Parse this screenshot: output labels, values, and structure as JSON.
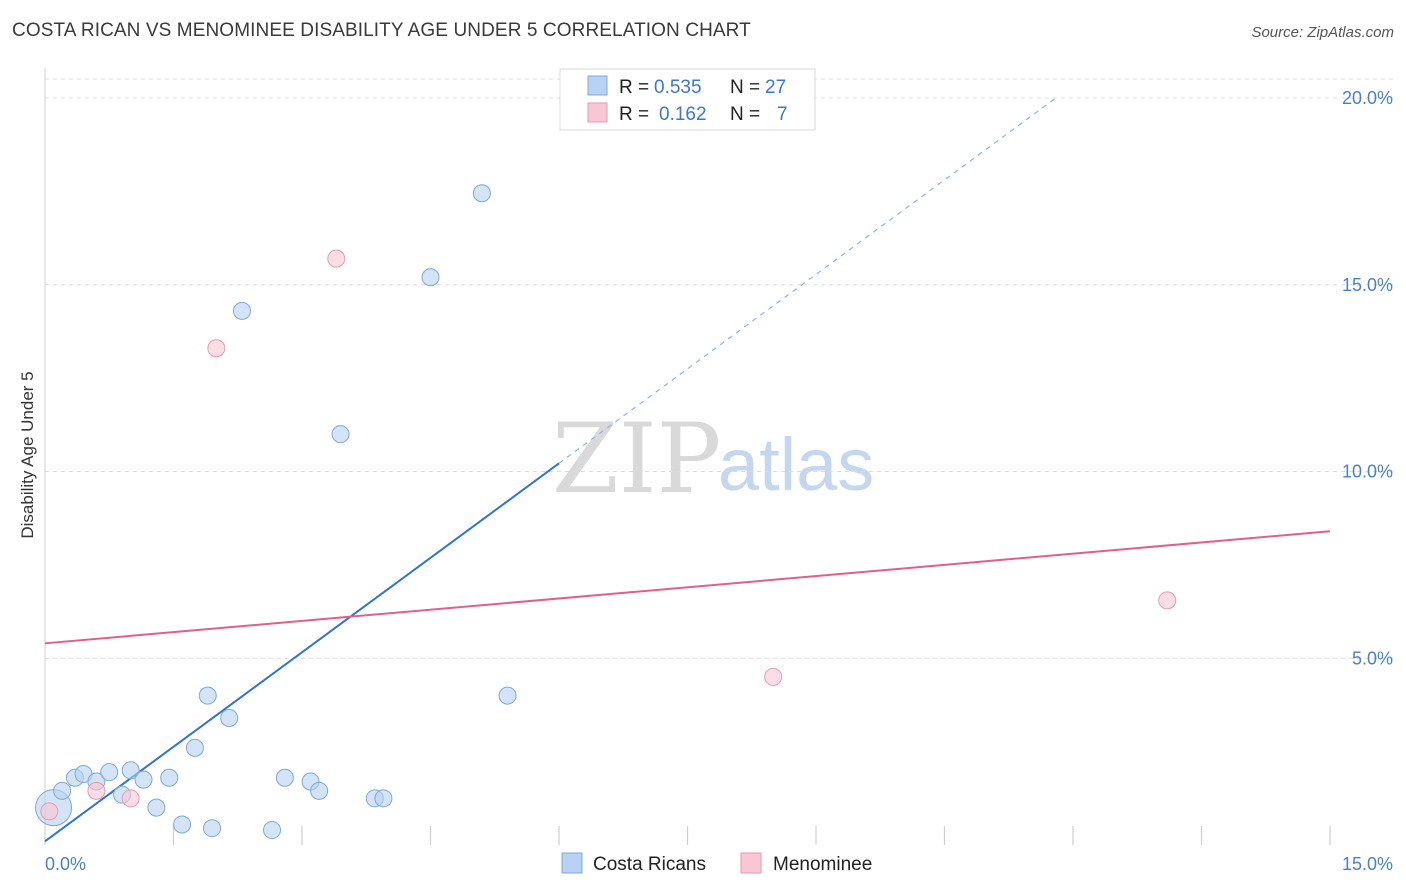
{
  "header": {
    "title": "COSTA RICAN VS MENOMINEE DISABILITY AGE UNDER 5 CORRELATION CHART",
    "source": "Source: ZipAtlas.com"
  },
  "watermark": {
    "zip": "ZIP",
    "atlas": "atlas"
  },
  "colors": {
    "blue_fill": "#b8d2f4",
    "blue_stroke": "#7fa8dc",
    "blue_line": "#2f74d0",
    "pink_fill": "#f8c6d4",
    "pink_stroke": "#e89ab0",
    "pink_line": "#e0608a",
    "grid": "#dcdcdc",
    "axis_label": "#4a7fd0"
  },
  "chart_data": {
    "type": "scatter",
    "title": "COSTA RICAN VS MENOMINEE DISABILITY AGE UNDER 5 CORRELATION CHART",
    "xlabel": "",
    "ylabel": "Disability Age Under 5",
    "xlim": [
      0,
      15
    ],
    "ylim": [
      0,
      20
    ],
    "x_tick_labels": {
      "min": "0.0%",
      "max": "15.0%"
    },
    "y_ticks": [
      {
        "value": 5,
        "label": "5.0%"
      },
      {
        "value": 10,
        "label": "10.0%"
      },
      {
        "value": 15,
        "label": "15.0%"
      },
      {
        "value": 20,
        "label": "20.0%"
      }
    ],
    "legend": [
      {
        "r_label": "R =",
        "r_value": "0.535",
        "n_label": "N =",
        "n_value": "27"
      },
      {
        "r_label": "R =",
        "r_value": "0.162",
        "n_label": "N =",
        "n_value": "7"
      }
    ],
    "series": [
      {
        "name": "Costa Ricans",
        "points": [
          {
            "x": 0.1,
            "y": 1.0,
            "big": true
          },
          {
            "x": 0.2,
            "y": 1.45
          },
          {
            "x": 0.35,
            "y": 1.8
          },
          {
            "x": 0.45,
            "y": 1.9
          },
          {
            "x": 0.6,
            "y": 1.7
          },
          {
            "x": 0.75,
            "y": 1.95
          },
          {
            "x": 0.9,
            "y": 1.35
          },
          {
            "x": 1.0,
            "y": 2.0
          },
          {
            "x": 1.15,
            "y": 1.75
          },
          {
            "x": 1.3,
            "y": 1.0
          },
          {
            "x": 1.45,
            "y": 1.8
          },
          {
            "x": 1.6,
            "y": 0.55
          },
          {
            "x": 1.75,
            "y": 2.6
          },
          {
            "x": 1.9,
            "y": 4.0
          },
          {
            "x": 1.95,
            "y": 0.45
          },
          {
            "x": 2.15,
            "y": 3.4
          },
          {
            "x": 2.3,
            "y": 14.3
          },
          {
            "x": 2.65,
            "y": 0.4
          },
          {
            "x": 2.8,
            "y": 1.8
          },
          {
            "x": 3.1,
            "y": 1.7
          },
          {
            "x": 3.2,
            "y": 1.45
          },
          {
            "x": 3.45,
            "y": 11.0
          },
          {
            "x": 3.85,
            "y": 1.25
          },
          {
            "x": 3.95,
            "y": 1.25
          },
          {
            "x": 4.5,
            "y": 15.2
          },
          {
            "x": 5.1,
            "y": 17.45
          },
          {
            "x": 5.4,
            "y": 4.0
          }
        ],
        "trend": {
          "x0": 0,
          "y0": 0.1,
          "x_solid_end": 6.0,
          "x1": 11.8,
          "y1": 20.0
        }
      },
      {
        "name": "Menominee",
        "points": [
          {
            "x": 0.05,
            "y": 0.9
          },
          {
            "x": 0.6,
            "y": 1.45
          },
          {
            "x": 1.0,
            "y": 1.25
          },
          {
            "x": 2.0,
            "y": 13.3
          },
          {
            "x": 3.4,
            "y": 15.7
          },
          {
            "x": 8.5,
            "y": 4.5
          },
          {
            "x": 13.1,
            "y": 6.55
          }
        ],
        "trend": {
          "x0": 0,
          "y0": 5.4,
          "x1": 15,
          "y1": 8.4
        }
      }
    ]
  }
}
